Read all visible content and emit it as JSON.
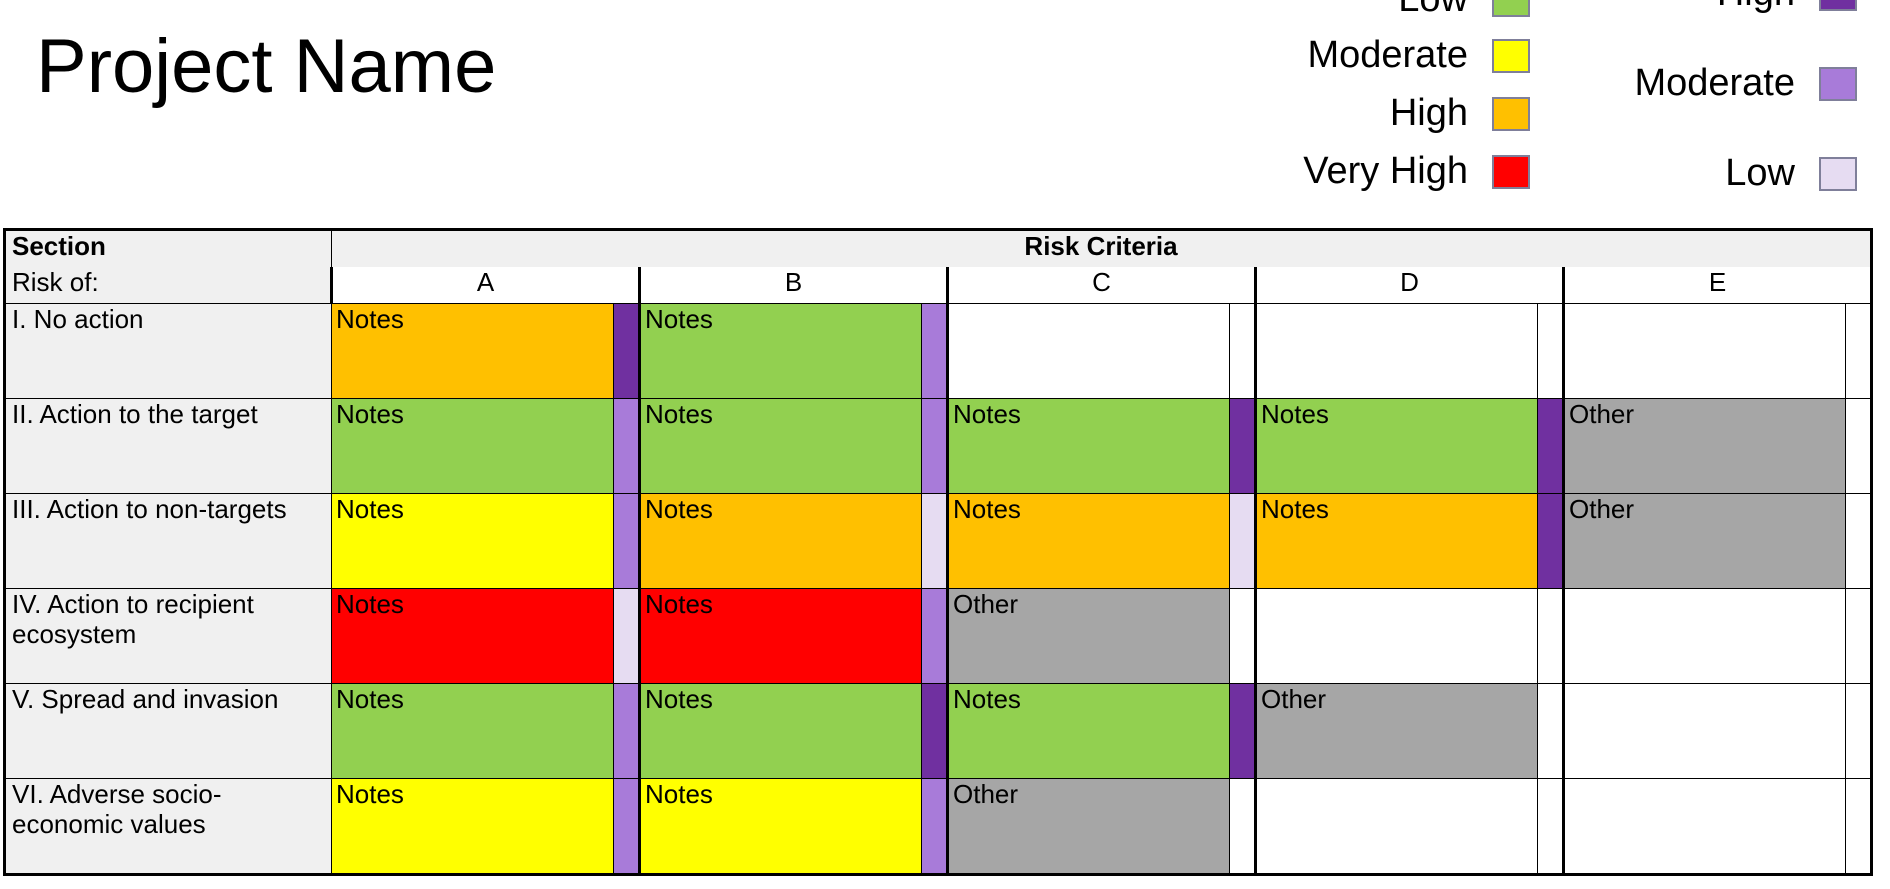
{
  "page": {
    "title": "Project Name"
  },
  "legend_left": [
    {
      "label": "Low",
      "color": "#92d050"
    },
    {
      "label": "Moderate",
      "color": "#ffff00"
    },
    {
      "label": "High",
      "color": "#ffc000"
    },
    {
      "label": "Very High",
      "color": "#ff0000"
    }
  ],
  "legend_right": [
    {
      "label": "High",
      "color": "#7030a0"
    },
    {
      "label": "Moderate",
      "color": "#a87bd9"
    },
    {
      "label": "Low",
      "color": "#e6dcf2"
    }
  ],
  "table": {
    "section_header": "Section",
    "risk_of_header": "Risk of:",
    "criteria_header": "Risk Criteria",
    "columns": [
      "A",
      "B",
      "C",
      "D",
      "E"
    ],
    "rows": [
      {
        "label": "I. No action",
        "cells": [
          {
            "text": "Notes",
            "color": "#ffc000",
            "strip": "#7030a0"
          },
          {
            "text": "Notes",
            "color": "#92d050",
            "strip": "#a87bd9"
          },
          {
            "text": "",
            "color": "#ffffff",
            "strip": "#ffffff"
          },
          {
            "text": "",
            "color": "#ffffff",
            "strip": "#ffffff"
          },
          {
            "text": "",
            "color": "#ffffff",
            "strip": "#ffffff"
          }
        ]
      },
      {
        "label": "II. Action to the target",
        "cells": [
          {
            "text": "Notes",
            "color": "#92d050",
            "strip": "#a87bd9"
          },
          {
            "text": "Notes",
            "color": "#92d050",
            "strip": "#a87bd9"
          },
          {
            "text": "Notes",
            "color": "#92d050",
            "strip": "#7030a0"
          },
          {
            "text": "Notes",
            "color": "#92d050",
            "strip": "#7030a0"
          },
          {
            "text": "Other",
            "color": "#a6a6a6",
            "strip": "#ffffff"
          }
        ]
      },
      {
        "label": "III. Action to non-targets",
        "cells": [
          {
            "text": "Notes",
            "color": "#ffff00",
            "strip": "#a87bd9"
          },
          {
            "text": "Notes",
            "color": "#ffc000",
            "strip": "#e6dcf2"
          },
          {
            "text": "Notes",
            "color": "#ffc000",
            "strip": "#e6dcf2"
          },
          {
            "text": "Notes",
            "color": "#ffc000",
            "strip": "#7030a0"
          },
          {
            "text": "Other",
            "color": "#a6a6a6",
            "strip": "#ffffff"
          }
        ]
      },
      {
        "label": "IV. Action to recipient ecosystem",
        "cells": [
          {
            "text": "Notes",
            "color": "#ff0000",
            "strip": "#e6dcf2"
          },
          {
            "text": "Notes",
            "color": "#ff0000",
            "strip": "#a87bd9"
          },
          {
            "text": "Other",
            "color": "#a6a6a6",
            "strip": "#ffffff"
          },
          {
            "text": "",
            "color": "#ffffff",
            "strip": "#ffffff"
          },
          {
            "text": "",
            "color": "#ffffff",
            "strip": "#ffffff"
          }
        ]
      },
      {
        "label": "V. Spread and invasion",
        "cells": [
          {
            "text": "Notes",
            "color": "#92d050",
            "strip": "#a87bd9"
          },
          {
            "text": "Notes",
            "color": "#92d050",
            "strip": "#7030a0"
          },
          {
            "text": "Notes",
            "color": "#92d050",
            "strip": "#7030a0"
          },
          {
            "text": "Other",
            "color": "#a6a6a6",
            "strip": "#ffffff"
          },
          {
            "text": "",
            "color": "#ffffff",
            "strip": "#ffffff"
          }
        ]
      },
      {
        "label": "VI. Adverse socio-economic values",
        "cells": [
          {
            "text": "Notes",
            "color": "#ffff00",
            "strip": "#a87bd9"
          },
          {
            "text": "Notes",
            "color": "#ffff00",
            "strip": "#a87bd9"
          },
          {
            "text": "Other",
            "color": "#a6a6a6",
            "strip": "#ffffff"
          },
          {
            "text": "",
            "color": "#ffffff",
            "strip": "#ffffff"
          },
          {
            "text": "",
            "color": "#ffffff",
            "strip": "#ffffff"
          }
        ]
      }
    ]
  }
}
